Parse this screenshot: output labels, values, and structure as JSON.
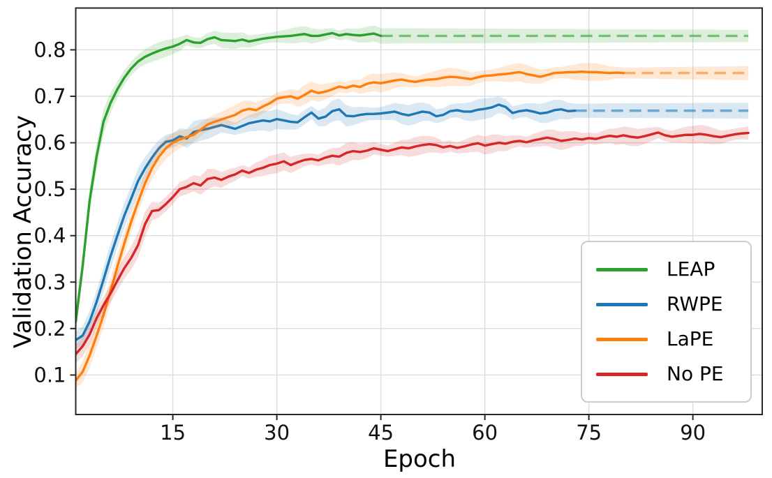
{
  "chart_data": {
    "type": "line",
    "xlabel": "Epoch",
    "ylabel": "Validation Accuracy",
    "xlim": [
      1,
      100
    ],
    "ylim": [
      0.015,
      0.89
    ],
    "x_ticks": [
      15,
      30,
      45,
      60,
      75,
      90
    ],
    "y_ticks": [
      0.1,
      0.2,
      0.3,
      0.4,
      0.5,
      0.6,
      0.7,
      0.8
    ],
    "grid": true,
    "legend_position": "lower right",
    "epoch_start": 1,
    "epoch_end": 98,
    "series": [
      {
        "name": "LEAP",
        "color": "#2ca02c",
        "band_halfwidth": 0.014,
        "solid_until_epoch": 45,
        "final_value": 0.83,
        "y": [
          0.215,
          0.335,
          0.475,
          0.57,
          0.645,
          0.685,
          0.715,
          0.74,
          0.76,
          0.775,
          0.785,
          0.792,
          0.798,
          0.803,
          0.807,
          0.813,
          0.821,
          0.816,
          0.815,
          0.823,
          0.827,
          0.821,
          0.82,
          0.819,
          0.822,
          0.818,
          0.821,
          0.824,
          0.826,
          0.828,
          0.829,
          0.83,
          0.832,
          0.834,
          0.83,
          0.83,
          0.833,
          0.836,
          0.831,
          0.834,
          0.832,
          0.831,
          0.833,
          0.835,
          0.83
        ]
      },
      {
        "name": "RWPE",
        "color": "#1f77b4",
        "band_halfwidth": 0.018,
        "solid_until_epoch": 73,
        "final_value": 0.669,
        "y": [
          0.175,
          0.185,
          0.215,
          0.257,
          0.305,
          0.355,
          0.4,
          0.443,
          0.48,
          0.518,
          0.545,
          0.568,
          0.588,
          0.602,
          0.605,
          0.614,
          0.609,
          0.623,
          0.627,
          0.63,
          0.634,
          0.638,
          0.634,
          0.63,
          0.636,
          0.642,
          0.645,
          0.648,
          0.646,
          0.651,
          0.648,
          0.645,
          0.644,
          0.655,
          0.665,
          0.652,
          0.656,
          0.668,
          0.672,
          0.658,
          0.657,
          0.66,
          0.662,
          0.662,
          0.663,
          0.665,
          0.667,
          0.662,
          0.659,
          0.663,
          0.667,
          0.665,
          0.657,
          0.66,
          0.668,
          0.67,
          0.667,
          0.667,
          0.671,
          0.673,
          0.676,
          0.682,
          0.677,
          0.664,
          0.668,
          0.67,
          0.667,
          0.663,
          0.665,
          0.67,
          0.672,
          0.668,
          0.669
        ]
      },
      {
        "name": "LaPE",
        "color": "#ff7f0e",
        "band_halfwidth": 0.016,
        "solid_until_epoch": 80,
        "final_value": 0.75,
        "y": [
          0.088,
          0.107,
          0.142,
          0.184,
          0.229,
          0.28,
          0.333,
          0.383,
          0.43,
          0.473,
          0.513,
          0.545,
          0.57,
          0.588,
          0.6,
          0.607,
          0.612,
          0.617,
          0.628,
          0.639,
          0.645,
          0.65,
          0.655,
          0.66,
          0.669,
          0.673,
          0.67,
          0.678,
          0.685,
          0.695,
          0.698,
          0.7,
          0.695,
          0.703,
          0.712,
          0.707,
          0.71,
          0.715,
          0.721,
          0.718,
          0.723,
          0.72,
          0.727,
          0.73,
          0.728,
          0.731,
          0.734,
          0.736,
          0.733,
          0.731,
          0.734,
          0.736,
          0.737,
          0.74,
          0.742,
          0.741,
          0.739,
          0.737,
          0.741,
          0.744,
          0.745,
          0.747,
          0.748,
          0.75,
          0.752,
          0.748,
          0.745,
          0.742,
          0.746,
          0.75,
          0.751,
          0.752,
          0.752,
          0.753,
          0.752,
          0.752,
          0.751,
          0.75,
          0.751,
          0.75
        ]
      },
      {
        "name": "No PE",
        "color": "#d62728",
        "band_halfwidth": 0.016,
        "solid_until_epoch": null,
        "final_value": 0.621,
        "y": [
          0.145,
          0.162,
          0.187,
          0.222,
          0.25,
          0.275,
          0.303,
          0.33,
          0.352,
          0.38,
          0.425,
          0.453,
          0.455,
          0.468,
          0.483,
          0.5,
          0.505,
          0.513,
          0.508,
          0.522,
          0.525,
          0.52,
          0.527,
          0.532,
          0.54,
          0.535,
          0.542,
          0.546,
          0.552,
          0.555,
          0.56,
          0.552,
          0.558,
          0.563,
          0.565,
          0.562,
          0.568,
          0.572,
          0.57,
          0.578,
          0.582,
          0.58,
          0.583,
          0.588,
          0.585,
          0.582,
          0.586,
          0.59,
          0.588,
          0.592,
          0.595,
          0.597,
          0.595,
          0.59,
          0.593,
          0.589,
          0.592,
          0.596,
          0.599,
          0.594,
          0.597,
          0.6,
          0.598,
          0.602,
          0.604,
          0.601,
          0.605,
          0.608,
          0.611,
          0.608,
          0.604,
          0.606,
          0.609,
          0.607,
          0.61,
          0.608,
          0.612,
          0.615,
          0.613,
          0.616,
          0.613,
          0.611,
          0.614,
          0.618,
          0.622,
          0.616,
          0.613,
          0.615,
          0.617,
          0.617,
          0.619,
          0.617,
          0.614,
          0.612,
          0.615,
          0.618,
          0.62,
          0.621
        ]
      }
    ]
  },
  "style": {
    "background": "#ffffff",
    "grid_color": "#dcdcdc",
    "spine_color": "#262626",
    "tick_color": "#262626",
    "text_color": "#111111",
    "legend_border": "#cccccc",
    "band_opacity": 0.17,
    "dash_opacity": 0.58
  }
}
